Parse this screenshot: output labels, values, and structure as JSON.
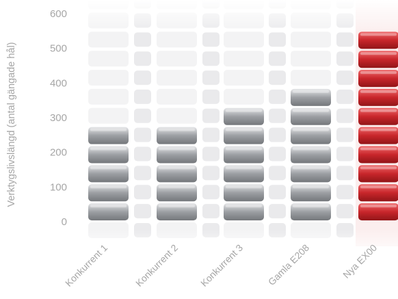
{
  "chart_data": {
    "type": "bar",
    "title": "",
    "xlabel": "",
    "ylabel": "Verktygslivslängd (antal gängade hål)",
    "ylim": [
      0,
      600
    ],
    "yticks": [
      0,
      100,
      200,
      300,
      400,
      500,
      600
    ],
    "categories": [
      "Konkurrent 1",
      "Konkurrent 2",
      "Konkurrent 3",
      "Gamla E208",
      "Nya EX00"
    ],
    "values": [
      270,
      270,
      325,
      380,
      545
    ],
    "block_step": 55,
    "grid": false,
    "legend": "none",
    "colors": {
      "bar": "#9c9fa3",
      "bar_light": "#e6e7e9",
      "bar_dark": "#74777b",
      "highlight": "#c8262b",
      "highlight_light": "#ee6a6c",
      "highlight_dark": "#921518",
      "ghost": "#f3f3f4",
      "ghost_mid": "#eaeaec",
      "text": "#a6a6a6",
      "highlight_column": "#fbeeee"
    },
    "highlight_index": 4
  }
}
